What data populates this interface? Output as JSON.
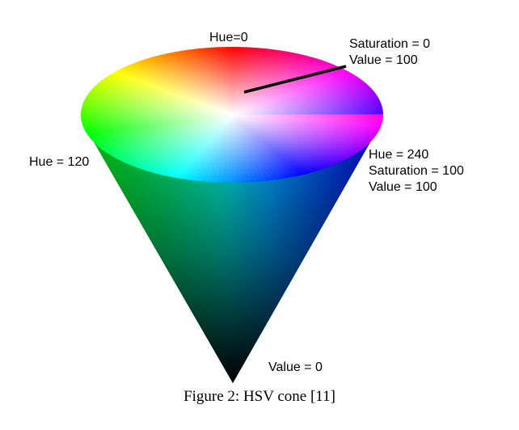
{
  "labels": {
    "hue_0": "Hue=0",
    "saturation_0": "Saturation = 0",
    "value_100_top": "Value = 100",
    "hue_120": "Hue = 120",
    "hue_240": "Hue = 240",
    "saturation_100": "Saturation = 100",
    "value_100_side": "Value = 100",
    "value_0": "Value = 0"
  },
  "caption": "Figure 2: HSV cone [11]",
  "colors": {
    "red": "#ff0000",
    "green": "#00ff00",
    "blue": "#0000ff",
    "apex": "#000000",
    "pointer_line": "#000000"
  }
}
